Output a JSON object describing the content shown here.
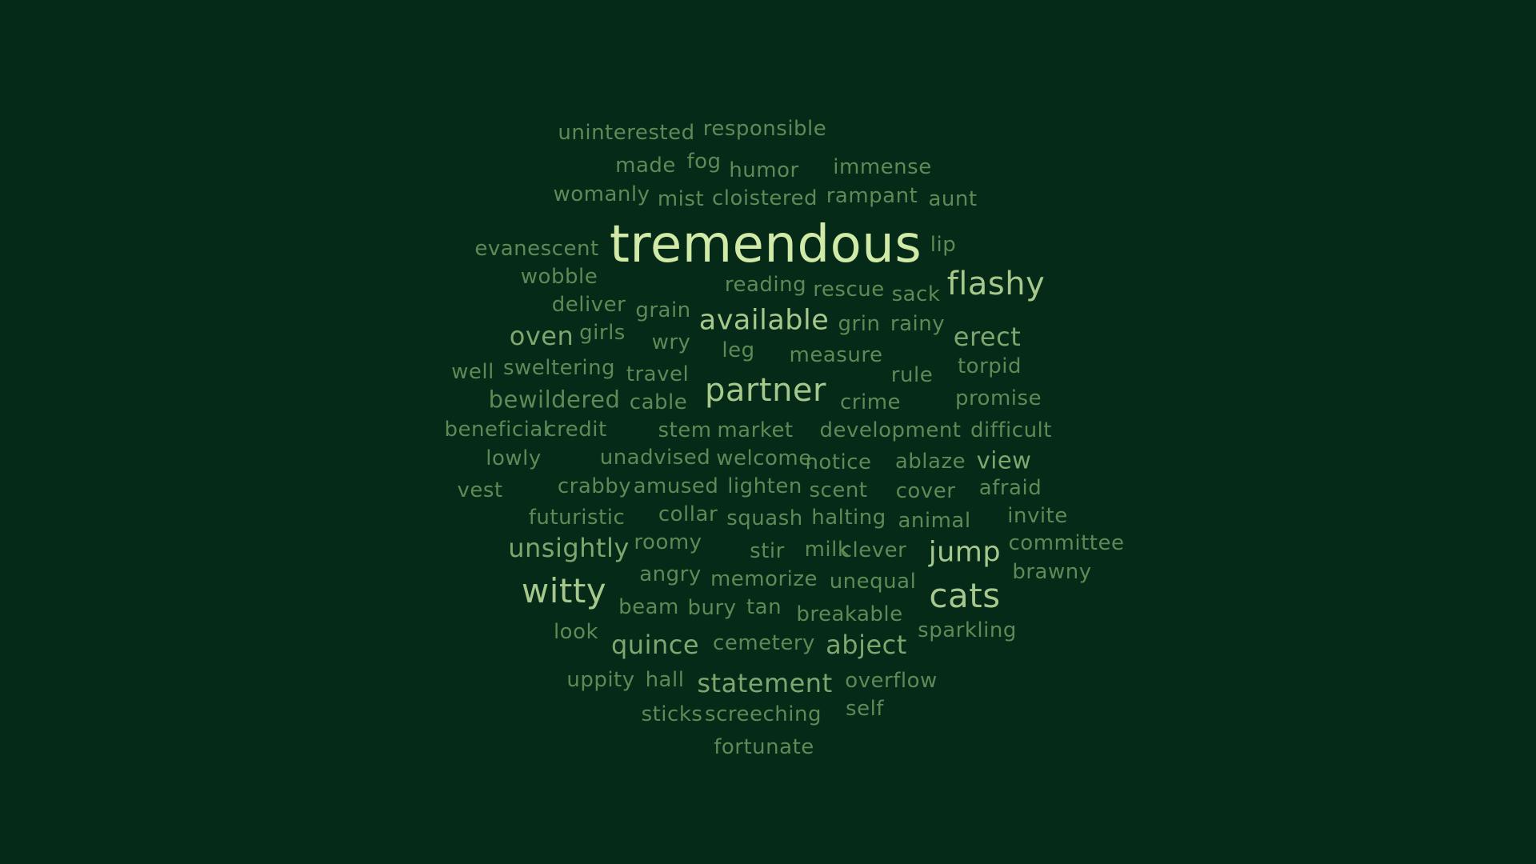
{
  "colors": {
    "background": "#052a17",
    "weight_1": "#5d8a56",
    "weight_2": "#7fa66f",
    "weight_3": "#a6c88c",
    "weight_4": "#d2eaa7"
  },
  "words": [
    {
      "text": "uninterested",
      "weight": 1
    },
    {
      "text": "responsible",
      "weight": 1
    },
    {
      "text": "made",
      "weight": 1
    },
    {
      "text": "fog",
      "weight": 1
    },
    {
      "text": "humor",
      "weight": 1
    },
    {
      "text": "immense",
      "weight": 1
    },
    {
      "text": "womanly",
      "weight": 1
    },
    {
      "text": "mist",
      "weight": 1
    },
    {
      "text": "cloistered",
      "weight": 1
    },
    {
      "text": "rampant",
      "weight": 1
    },
    {
      "text": "aunt",
      "weight": 1
    },
    {
      "text": "evanescent",
      "weight": 1
    },
    {
      "text": "tremendous",
      "weight": 4
    },
    {
      "text": "lip",
      "weight": 1
    },
    {
      "text": "wobble",
      "weight": 1
    },
    {
      "text": "reading",
      "weight": 1
    },
    {
      "text": "rescue",
      "weight": 1
    },
    {
      "text": "sack",
      "weight": 1
    },
    {
      "text": "flashy",
      "weight": 3
    },
    {
      "text": "deliver",
      "weight": 1
    },
    {
      "text": "grain",
      "weight": 1
    },
    {
      "text": "available",
      "weight": 3
    },
    {
      "text": "grin",
      "weight": 1
    },
    {
      "text": "rainy",
      "weight": 1
    },
    {
      "text": "oven",
      "weight": 2
    },
    {
      "text": "girls",
      "weight": 1
    },
    {
      "text": "wry",
      "weight": 1
    },
    {
      "text": "leg",
      "weight": 1
    },
    {
      "text": "measure",
      "weight": 1
    },
    {
      "text": "erect",
      "weight": 2
    },
    {
      "text": "well",
      "weight": 1
    },
    {
      "text": "sweltering",
      "weight": 1
    },
    {
      "text": "travel",
      "weight": 1
    },
    {
      "text": "rule",
      "weight": 1
    },
    {
      "text": "torpid",
      "weight": 1
    },
    {
      "text": "bewildered",
      "weight": 1
    },
    {
      "text": "cable",
      "weight": 1
    },
    {
      "text": "partner",
      "weight": 3
    },
    {
      "text": "crime",
      "weight": 1
    },
    {
      "text": "promise",
      "weight": 1
    },
    {
      "text": "beneficial",
      "weight": 1
    },
    {
      "text": "credit",
      "weight": 1
    },
    {
      "text": "stem",
      "weight": 1
    },
    {
      "text": "market",
      "weight": 1
    },
    {
      "text": "development",
      "weight": 1
    },
    {
      "text": "difficult",
      "weight": 1
    },
    {
      "text": "lowly",
      "weight": 1
    },
    {
      "text": "unadvised",
      "weight": 1
    },
    {
      "text": "welcome",
      "weight": 1
    },
    {
      "text": "notice",
      "weight": 1
    },
    {
      "text": "ablaze",
      "weight": 1
    },
    {
      "text": "view",
      "weight": 2
    },
    {
      "text": "vest",
      "weight": 1
    },
    {
      "text": "crabby",
      "weight": 1
    },
    {
      "text": "amused",
      "weight": 1
    },
    {
      "text": "lighten",
      "weight": 1
    },
    {
      "text": "scent",
      "weight": 1
    },
    {
      "text": "cover",
      "weight": 1
    },
    {
      "text": "afraid",
      "weight": 1
    },
    {
      "text": "futuristic",
      "weight": 1
    },
    {
      "text": "collar",
      "weight": 1
    },
    {
      "text": "squash",
      "weight": 1
    },
    {
      "text": "halting",
      "weight": 1
    },
    {
      "text": "animal",
      "weight": 1
    },
    {
      "text": "invite",
      "weight": 1
    },
    {
      "text": "unsightly",
      "weight": 2
    },
    {
      "text": "roomy",
      "weight": 1
    },
    {
      "text": "stir",
      "weight": 1
    },
    {
      "text": "milk",
      "weight": 1
    },
    {
      "text": "clever",
      "weight": 1
    },
    {
      "text": "jump",
      "weight": 3
    },
    {
      "text": "committee",
      "weight": 1
    },
    {
      "text": "angry",
      "weight": 1
    },
    {
      "text": "memorize",
      "weight": 1
    },
    {
      "text": "unequal",
      "weight": 1
    },
    {
      "text": "brawny",
      "weight": 1
    },
    {
      "text": "witty",
      "weight": 3
    },
    {
      "text": "beam",
      "weight": 1
    },
    {
      "text": "bury",
      "weight": 1
    },
    {
      "text": "tan",
      "weight": 1
    },
    {
      "text": "breakable",
      "weight": 1
    },
    {
      "text": "cats",
      "weight": 3
    },
    {
      "text": "look",
      "weight": 1
    },
    {
      "text": "sparkling",
      "weight": 1
    },
    {
      "text": "quince",
      "weight": 2
    },
    {
      "text": "cemetery",
      "weight": 1
    },
    {
      "text": "abject",
      "weight": 2
    },
    {
      "text": "uppity",
      "weight": 1
    },
    {
      "text": "hall",
      "weight": 1
    },
    {
      "text": "statement",
      "weight": 2
    },
    {
      "text": "overflow",
      "weight": 1
    },
    {
      "text": "sticks",
      "weight": 1
    },
    {
      "text": "screeching",
      "weight": 1
    },
    {
      "text": "self",
      "weight": 1
    },
    {
      "text": "fortunate",
      "weight": 1
    }
  ]
}
